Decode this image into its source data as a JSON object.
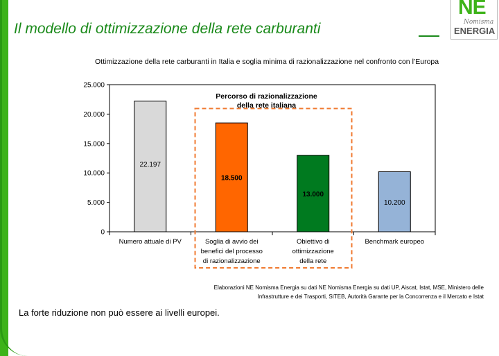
{
  "slide": {
    "title": "Il modello di ottimizzazione della rete carburanti",
    "footer": "La forte riduzione non può essere ai livelli europei.",
    "source_line1": "Elaborazioni NE Nomisma Energia su dati NE Nomisma Energia su dati UP, Aiscat, Istat, MSE, Ministero delle",
    "source_line2": "Infrastrutture e dei Trasporti, SITEB, Autorità Garante per la Concorrenza e il Mercato e Istat"
  },
  "logo": {
    "ne": "NE",
    "nomisma": "Nomisma",
    "energia": "ENERGIA"
  },
  "colors": {
    "accent": "#1a8a1a",
    "bar_grey": "#d9d9d9",
    "bar_orange": "#ff6600",
    "bar_green": "#007a1f",
    "bar_blue": "#95b3d7",
    "box": "#f07a30"
  },
  "chart_data": {
    "type": "bar",
    "title": "Ottimizzazione della rete carburanti in Italia e soglia minima di razionalizzazione nel confronto con l’Europa",
    "categories": [
      [
        "Numero attuale di PV"
      ],
      [
        "Soglia di avvio dei",
        "benefici del processo",
        "di razionalizzazione"
      ],
      [
        "Obiettivo di",
        "ottimizzazione",
        "della rete"
      ],
      [
        "Benchmark europeo"
      ]
    ],
    "values": [
      22197,
      18500,
      13000,
      10200
    ],
    "value_labels": [
      "22.197",
      "18.500",
      "13.000",
      "10.200"
    ],
    "value_label_bold": [
      false,
      true,
      true,
      false
    ],
    "bar_colors": [
      "#d9d9d9",
      "#ff6600",
      "#007a1f",
      "#95b3d7"
    ],
    "ylim": [
      0,
      25000
    ],
    "yticks": [
      0,
      5000,
      10000,
      15000,
      20000,
      25000
    ],
    "ytick_labels": [
      "0",
      "5.000",
      "10.000",
      "15.000",
      "20.000",
      "25.000"
    ],
    "grid": false,
    "annotation": {
      "lines": [
        "Percorso di razionalizzazione",
        "della rete italiana"
      ],
      "spans_categories": [
        1,
        2
      ]
    }
  }
}
